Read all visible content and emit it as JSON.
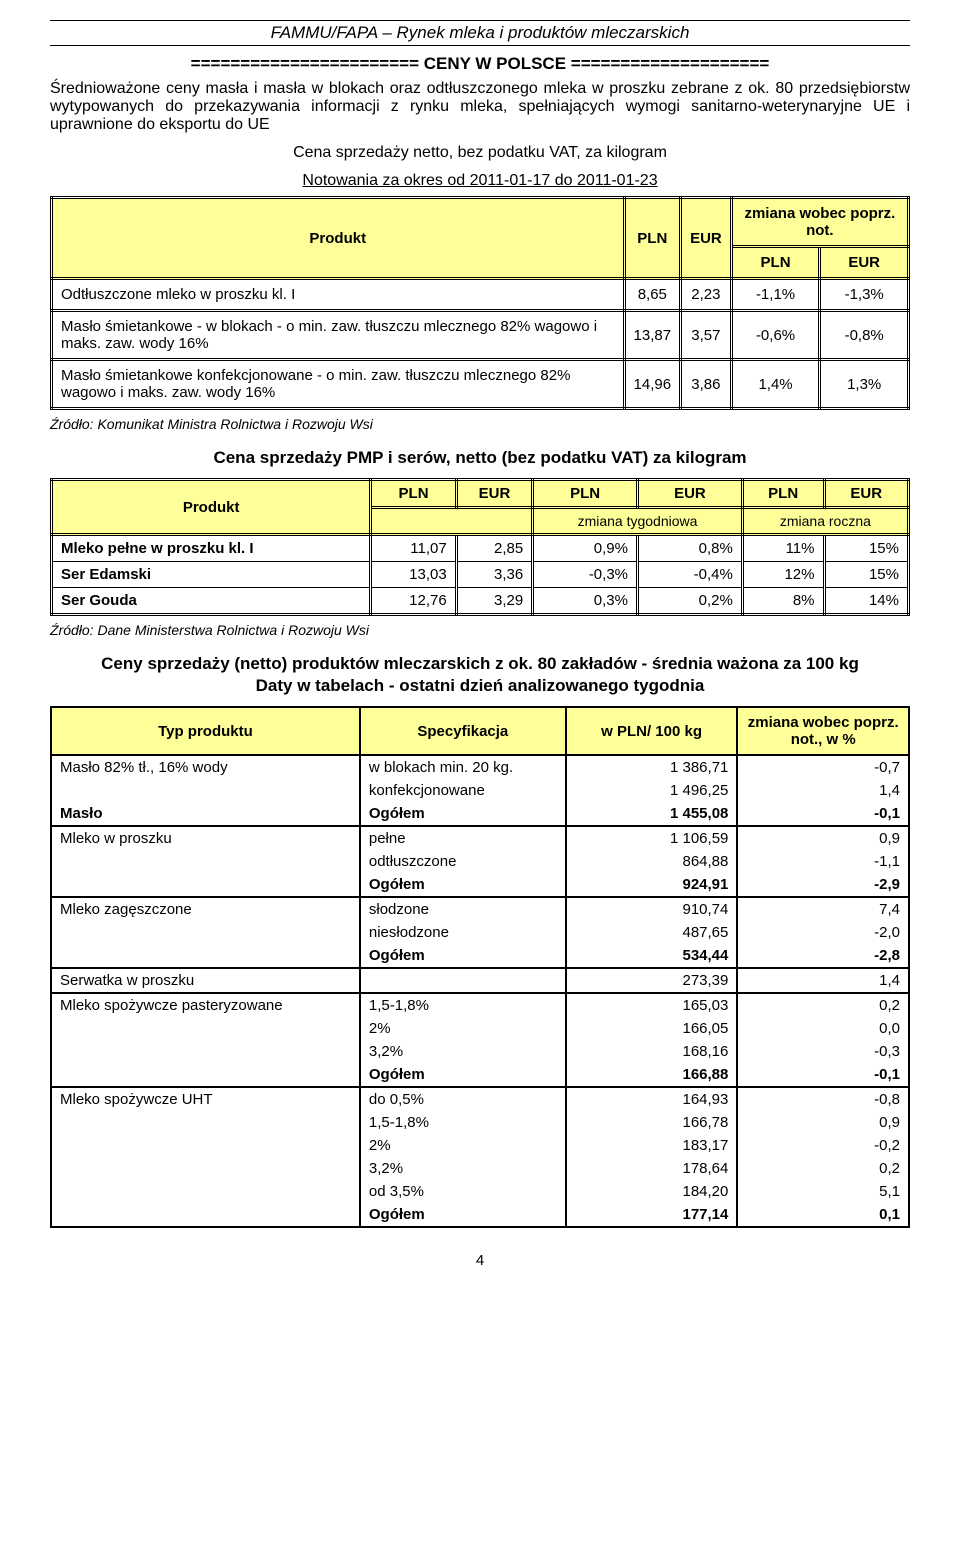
{
  "header": "FAMMU/FAPA – Rynek mleka i produktów mleczarskich",
  "section_divider": "======================= CENY W POLSCE ====================",
  "intro1": "Średnioważone ceny masła i masła w blokach oraz odtłuszczonego mleka w proszku zebrane z ok. 80 przedsiębiorstw wytypowanych do przekazywania informacji z rynku mleka, spełniających wymogi sanitarno-weterynaryjne UE i uprawnione do eksportu do UE",
  "line_center1": "Cena sprzedaży netto, bez podatku VAT, za kilogram",
  "line_center2": "Notowania za okres od 2011-01-17 do 2011-01-23",
  "t1": {
    "head": {
      "produkt": "Produkt",
      "pln": "PLN",
      "eur": "EUR",
      "zmiana": "zmiana wobec poprz. not."
    },
    "rows": [
      {
        "name": "Odtłuszczone mleko w proszku kl. I",
        "pln": "8,65",
        "eur": "2,23",
        "dpln": "-1,1%",
        "deur": "-1,3%"
      },
      {
        "name": "Masło śmietankowe - w blokach - o min. zaw. tłuszczu mlecznego 82% wagowo i maks. zaw. wody 16%",
        "pln": "13,87",
        "eur": "3,57",
        "dpln": "-0,6%",
        "deur": "-0,8%"
      },
      {
        "name": "Masło śmietankowe konfekcjonowane - o min. zaw. tłuszczu mlecznego 82% wagowo i maks. zaw. wody 16%",
        "pln": "14,96",
        "eur": "3,86",
        "dpln": "1,4%",
        "deur": "1,3%"
      }
    ],
    "source": "Źródło: Komunikat Ministra Rolnictwa i Rozwoju Wsi"
  },
  "t2": {
    "title": "Cena sprzedaży PMP i serów, netto (bez podatku VAT) za kilogram",
    "head": {
      "produkt": "Produkt",
      "pln": "PLN",
      "eur": "EUR",
      "zt": "zmiana tygodniowa",
      "zr": "zmiana roczna"
    },
    "rows": [
      {
        "name": "Mleko pełne w proszku kl. I",
        "pln": "11,07",
        "eur": "2,85",
        "wtpln": "0,9%",
        "wteur": "0,8%",
        "wrpln": "11%",
        "wreur": "15%"
      },
      {
        "name": "Ser Edamski",
        "pln": "13,03",
        "eur": "3,36",
        "wtpln": "-0,3%",
        "wteur": "-0,4%",
        "wrpln": "12%",
        "wreur": "15%"
      },
      {
        "name": "Ser Gouda",
        "pln": "12,76",
        "eur": "3,29",
        "wtpln": "0,3%",
        "wteur": "0,2%",
        "wrpln": "8%",
        "wreur": "14%"
      }
    ],
    "source": "Źródło: Dane Ministerstwa Rolnictwa i Rozwoju Wsi"
  },
  "t3": {
    "title1": "Ceny sprzedaży (netto) produktów mleczarskich z ok. 80 zakładów - średnia ważona za 100 kg",
    "title2": "Daty w tabelach - ostatni dzień analizowanego tygodnia",
    "head": {
      "typ": "Typ produktu",
      "spec": "Specyfikacja",
      "wpln": "w PLN/ 100 kg",
      "zm": "zmiana wobec poprz. not., w %"
    },
    "groups": [
      {
        "typ": "Masło 82% tł., 16% wody",
        "rows": [
          {
            "spec": "w blokach min. 20 kg.",
            "v": "1 386,71",
            "d": "-0,7"
          },
          {
            "spec": "konfekcjonowane",
            "v": "1 496,25",
            "d": "1,4"
          }
        ]
      },
      {
        "typ": "Masło",
        "total": {
          "spec": "Ogółem",
          "v": "1 455,08",
          "d": "-0,1"
        }
      },
      {
        "typ": "Mleko w proszku",
        "rows": [
          {
            "spec": "pełne",
            "v": "1 106,59",
            "d": "0,9"
          },
          {
            "spec": "odtłuszczone",
            "v": "864,88",
            "d": "-1,1"
          }
        ],
        "total": {
          "spec": "Ogółem",
          "v": "924,91",
          "d": "-2,9"
        }
      },
      {
        "typ": "Mleko zagęszczone",
        "rows": [
          {
            "spec": "słodzone",
            "v": "910,74",
            "d": "7,4"
          },
          {
            "spec": "niesłodzone",
            "v": "487,65",
            "d": "-2,0"
          }
        ],
        "total": {
          "spec": "Ogółem",
          "v": "534,44",
          "d": "-2,8"
        }
      },
      {
        "typ": "Serwatka w proszku",
        "single": {
          "v": "273,39",
          "d": "1,4"
        }
      },
      {
        "typ": "Mleko spożywcze pasteryzowane",
        "rows": [
          {
            "spec": "1,5-1,8%",
            "v": "165,03",
            "d": "0,2"
          },
          {
            "spec": "2%",
            "v": "166,05",
            "d": "0,0"
          },
          {
            "spec": "3,2%",
            "v": "168,16",
            "d": "-0,3"
          }
        ],
        "total": {
          "spec": "Ogółem",
          "v": "166,88",
          "d": "-0,1"
        }
      },
      {
        "typ": "Mleko spożywcze UHT",
        "rows": [
          {
            "spec": "do 0,5%",
            "v": "164,93",
            "d": "-0,8"
          },
          {
            "spec": "1,5-1,8%",
            "v": "166,78",
            "d": "0,9"
          },
          {
            "spec": "2%",
            "v": "183,17",
            "d": "-0,2"
          },
          {
            "spec": "3,2%",
            "v": "178,64",
            "d": "0,2"
          },
          {
            "spec": "od 3,5%",
            "v": "184,20",
            "d": "5,1"
          }
        ],
        "total": {
          "spec": "Ogółem",
          "v": "177,14",
          "d": "0,1"
        }
      }
    ]
  },
  "page_num": "4",
  "colors": {
    "highlight": "#ffff99",
    "text": "#000000",
    "bg": "#ffffff"
  }
}
